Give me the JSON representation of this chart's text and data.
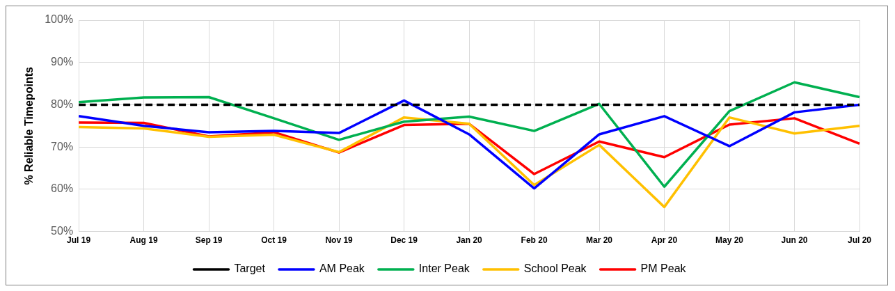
{
  "chart_data": {
    "type": "line",
    "ylabel": "% Reliable Timepoints",
    "categories": [
      "Jul 19",
      "Aug 19",
      "Sep 19",
      "Oct 19",
      "Nov 19",
      "Dec 19",
      "Jan 20",
      "Feb 20",
      "Mar 20",
      "Apr 20",
      "May 20",
      "Jun 20",
      "Jul 20"
    ],
    "series": [
      {
        "name": "Target",
        "color": "#000000",
        "line_style": "dashed",
        "values": [
          80,
          80,
          80,
          80,
          80,
          80,
          80,
          80,
          80,
          80,
          80,
          80,
          80
        ]
      },
      {
        "name": "AM Peak",
        "color": "#0000ff",
        "values": [
          77.3,
          75,
          73.5,
          73.8,
          73.3,
          81,
          73,
          60.2,
          73,
          77.3,
          70.2,
          78.2,
          80
        ]
      },
      {
        "name": "Inter Peak",
        "color": "#00b050",
        "values": [
          80.6,
          81.7,
          81.8,
          76.8,
          71.7,
          76,
          77.2,
          73.8,
          80.2,
          60.6,
          78.5,
          85.3,
          81.8
        ]
      },
      {
        "name": "School Peak",
        "color": "#ffc000",
        "values": [
          74.7,
          74.4,
          72.4,
          72.9,
          68.8,
          77,
          75.5,
          61,
          70.5,
          55.8,
          77,
          73.2,
          75
        ]
      },
      {
        "name": "PM Peak",
        "color": "#ff0000",
        "values": [
          75.8,
          75.7,
          72.5,
          73.5,
          68.7,
          75.2,
          75.5,
          63.6,
          71.3,
          67.6,
          75.3,
          76.8,
          70.8
        ]
      }
    ],
    "ylim": [
      50,
      100
    ],
    "yticks": [
      {
        "value": 50,
        "label": "50%"
      },
      {
        "value": 60,
        "label": "60%"
      },
      {
        "value": 70,
        "label": "70%"
      },
      {
        "value": 80,
        "label": "80%"
      },
      {
        "value": 90,
        "label": "90%"
      },
      {
        "value": 100,
        "label": "100%"
      }
    ],
    "grid": true,
    "legend": "bottom",
    "marker": "none",
    "line_style": "solid"
  }
}
